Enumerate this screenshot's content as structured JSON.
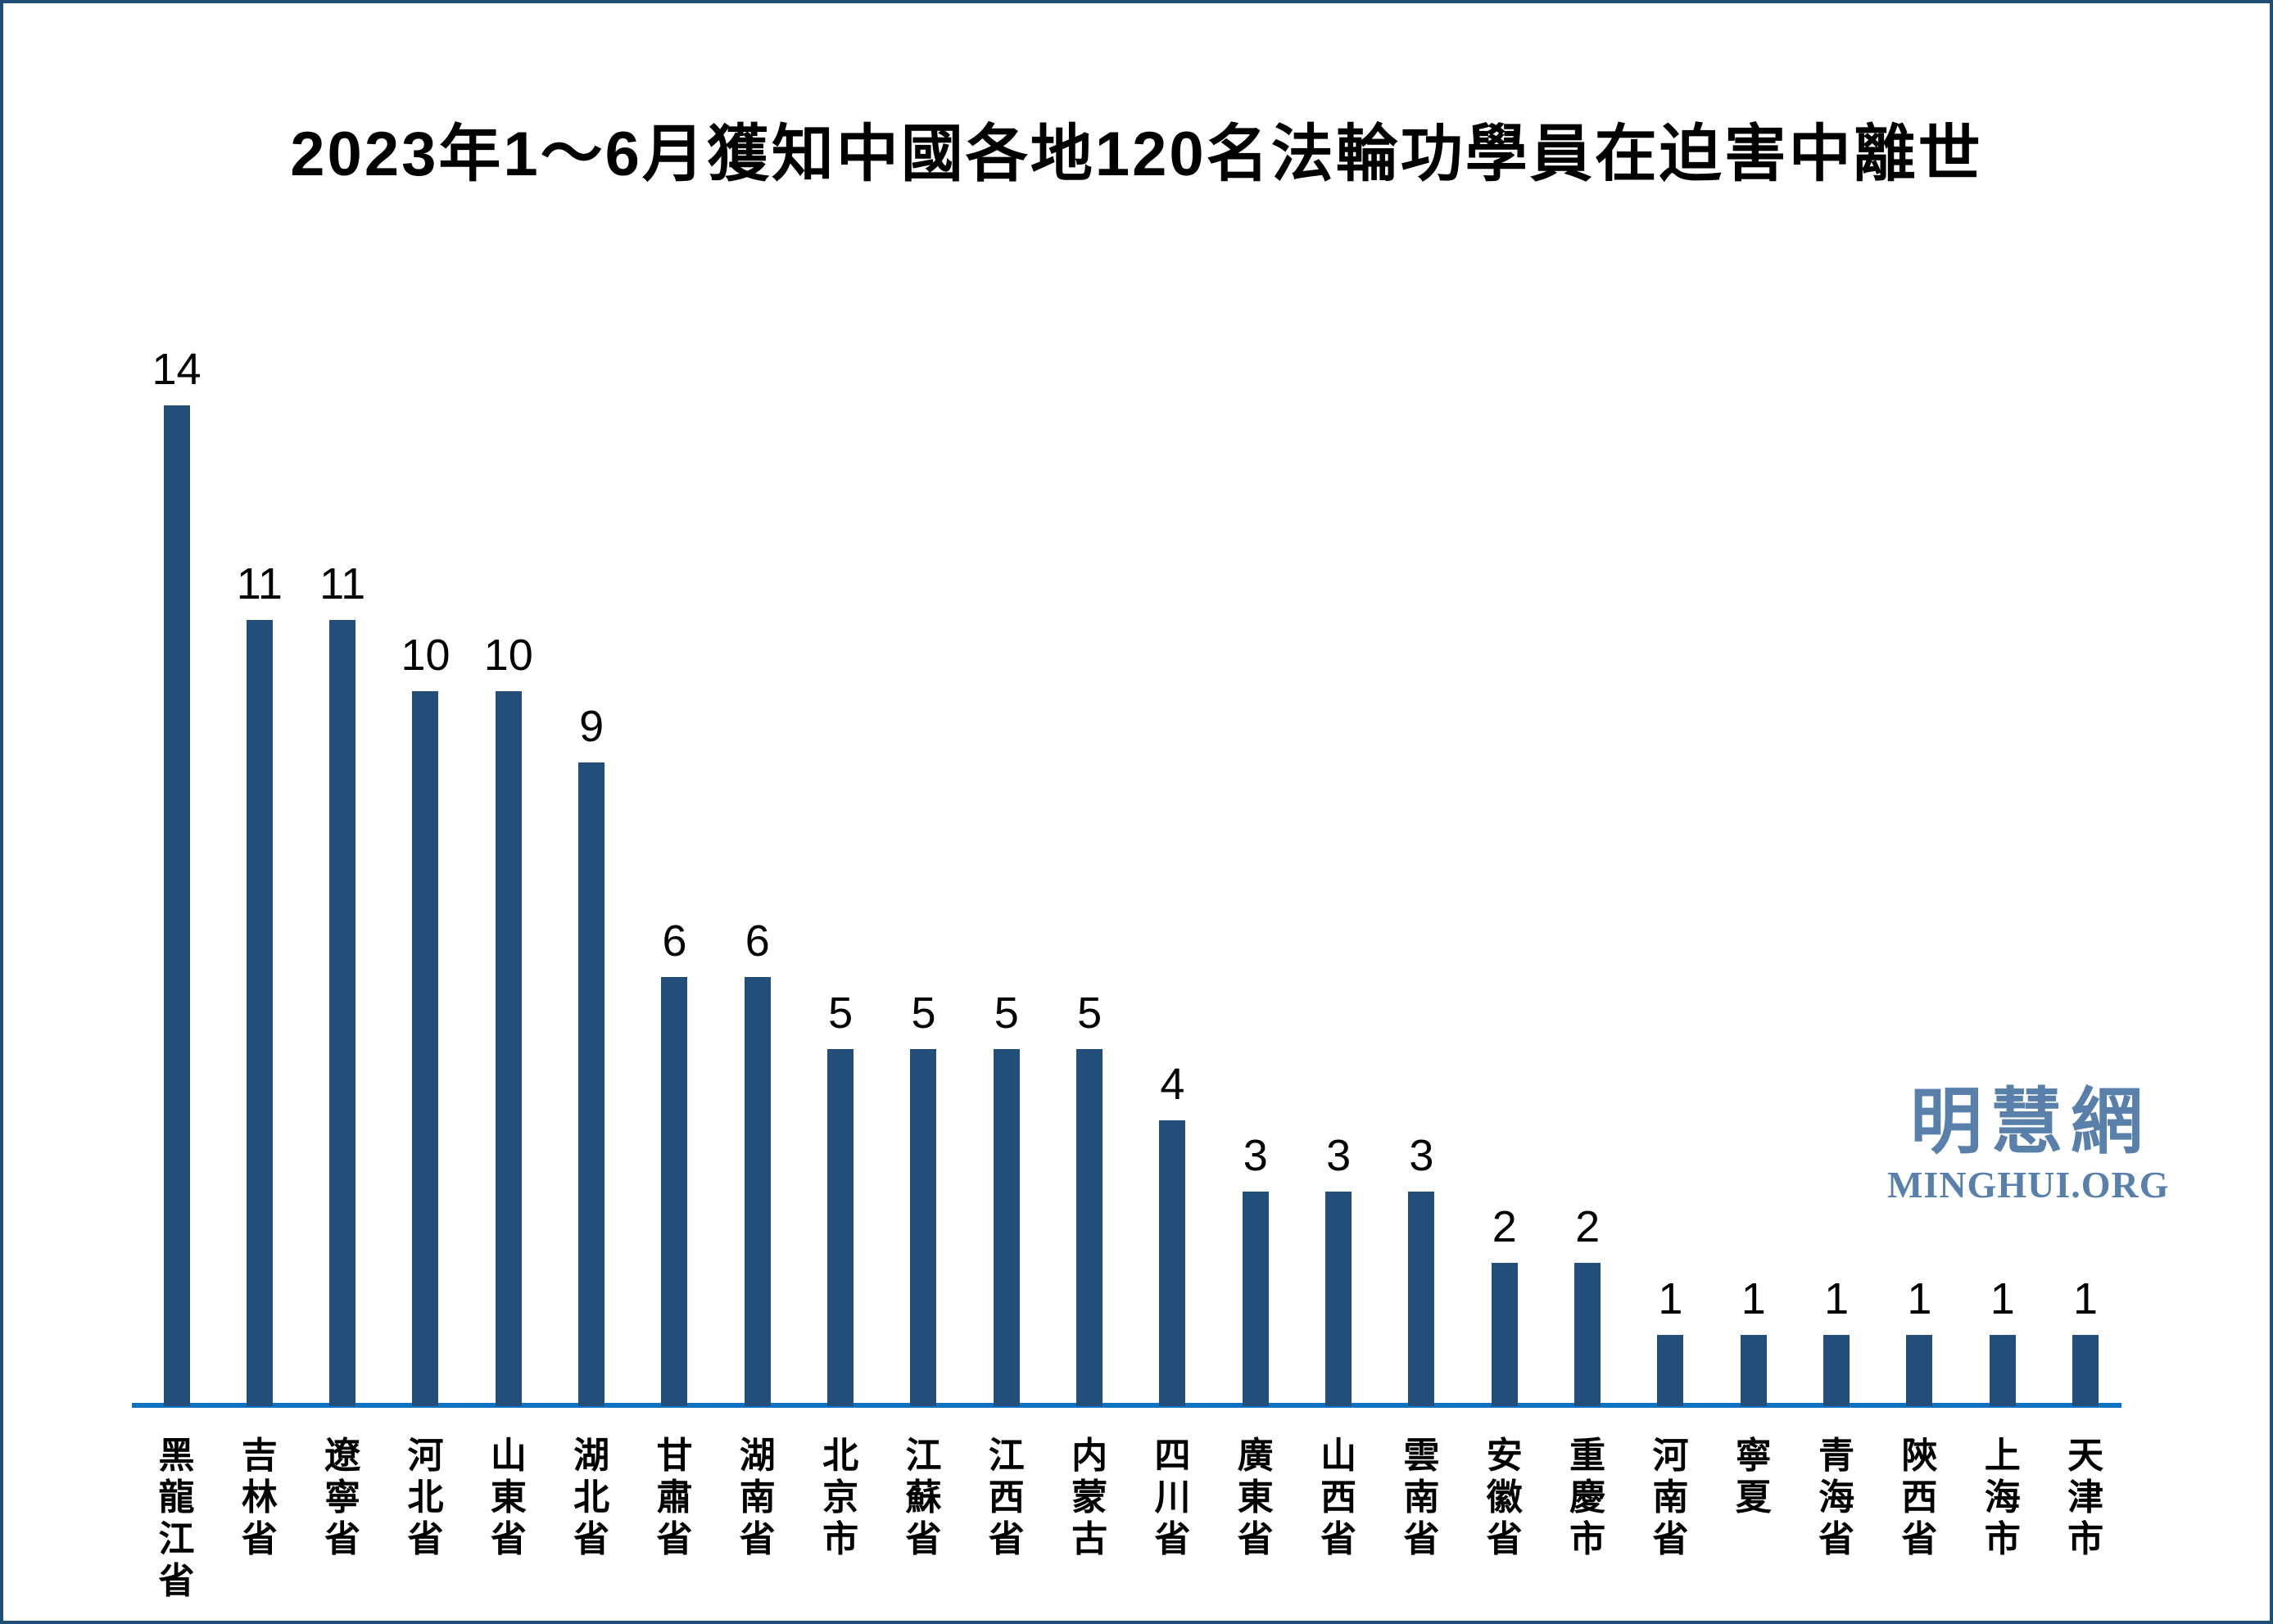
{
  "title": "2023年1～6月獲知中國各地120名法輪功學員在迫害中離世",
  "watermark": {
    "cjk": "明慧網",
    "latin": "MINGHUI.ORG"
  },
  "colors": {
    "frame_border": "#1f4e79",
    "background": "#ffffff",
    "bar": "#224e79",
    "axis": "#0d73c2",
    "text": "#000000",
    "watermark": "#5880aa"
  },
  "chart_data": {
    "type": "bar",
    "title": "2023年1～6月獲知中國各地120名法輪功學員在迫害中離世",
    "categories": [
      "黑龍江省",
      "吉林省",
      "遼寧省",
      "河北省",
      "山東省",
      "湖北省",
      "甘肅省",
      "湖南省",
      "北京市",
      "江蘇省",
      "江西省",
      "内蒙古",
      "四川省",
      "廣東省",
      "山西省",
      "雲南省",
      "安徽省",
      "重慶市",
      "河南省",
      "寧夏",
      "青海省",
      "陝西省",
      "上海市",
      "天津市"
    ],
    "values": [
      14,
      11,
      11,
      10,
      10,
      9,
      6,
      6,
      5,
      5,
      5,
      5,
      4,
      3,
      3,
      3,
      2,
      2,
      1,
      1,
      1,
      1,
      1,
      1
    ],
    "total": 120,
    "xlabel": "",
    "ylabel": "",
    "ylim": [
      0,
      14
    ],
    "grid": false,
    "legend": false,
    "value_labels": true,
    "category_label_orientation": "vertical-cjk",
    "bar_color": "#224e79",
    "axis_color": "#0d73c2"
  }
}
